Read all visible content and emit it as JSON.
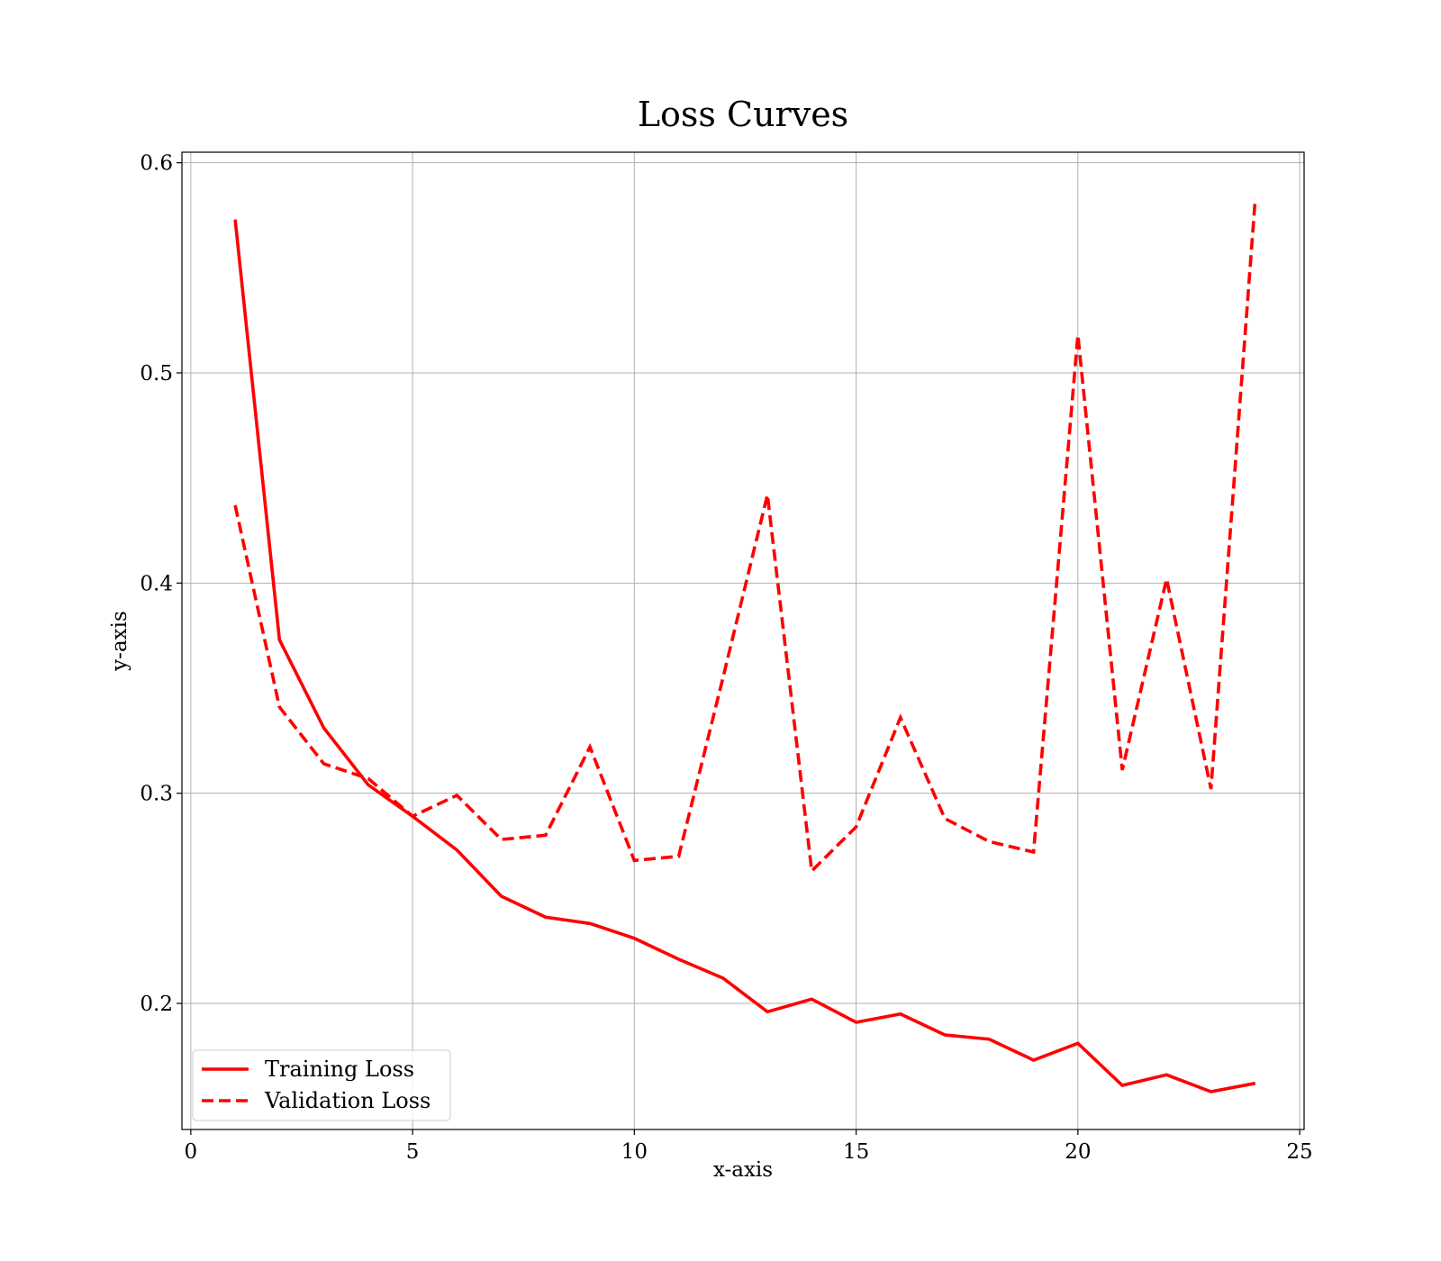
{
  "chart_data": {
    "type": "line",
    "title": "Loss Curves",
    "xlabel": "x-axis",
    "ylabel": "y-axis",
    "xlim": [
      -0.2,
      25.1
    ],
    "ylim": [
      0.14,
      0.605
    ],
    "xticks": [
      0,
      5,
      10,
      15,
      20,
      25
    ],
    "xtick_labels": [
      "0",
      "5",
      "10",
      "15",
      "20",
      "25"
    ],
    "yticks": [
      0.2,
      0.3,
      0.4,
      0.5,
      0.6
    ],
    "ytick_labels": [
      "0.2",
      "0.3",
      "0.4",
      "0.5",
      "0.6"
    ],
    "grid": true,
    "legend_position": "lower-left",
    "x": [
      1,
      2,
      3,
      4,
      5,
      6,
      7,
      8,
      9,
      10,
      11,
      12,
      13,
      14,
      15,
      16,
      17,
      18,
      19,
      20,
      21,
      22,
      23,
      24
    ],
    "series": [
      {
        "name": "Training Loss",
        "style": "solid",
        "color": "#ff0000",
        "values": [
          0.573,
          0.373,
          0.331,
          0.304,
          0.289,
          0.273,
          0.251,
          0.241,
          0.238,
          0.231,
          0.221,
          0.212,
          0.196,
          0.202,
          0.191,
          0.195,
          0.185,
          0.183,
          0.173,
          0.181,
          0.161,
          0.166,
          0.158,
          0.162
        ]
      },
      {
        "name": "Validation Loss",
        "style": "dashed",
        "color": "#ff0000",
        "values": [
          0.437,
          0.341,
          0.314,
          0.307,
          0.289,
          0.299,
          0.278,
          0.28,
          0.322,
          0.268,
          0.27,
          0.355,
          0.442,
          0.263,
          0.284,
          0.336,
          0.288,
          0.277,
          0.272,
          0.518,
          0.311,
          0.402,
          0.302,
          0.583
        ]
      }
    ]
  }
}
